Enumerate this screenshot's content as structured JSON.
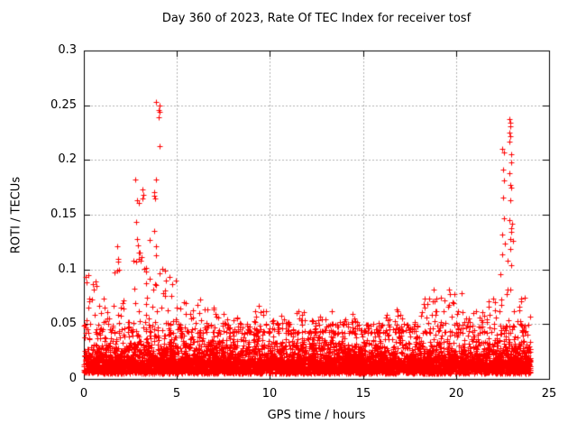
{
  "chart_data": {
    "type": "scatter",
    "title": "Day 360 of 2023, Rate Of TEC Index for receiver tosf",
    "xlabel": "GPS time / hours",
    "ylabel": "ROTI / TECUs",
    "xlim": [
      0,
      25
    ],
    "ylim": [
      0,
      0.3
    ],
    "xticks": [
      0,
      5,
      10,
      15,
      20,
      25
    ],
    "xtick_labels": [
      "0",
      "5",
      "10",
      "15",
      "20",
      "25"
    ],
    "yticks": [
      0,
      0.05,
      0.1,
      0.15,
      0.2,
      0.25,
      0.3
    ],
    "ytick_labels": [
      "0",
      "0.05",
      "0.1",
      "0.15",
      "0.2",
      "0.25",
      "0.3"
    ],
    "grid": true,
    "legend": "none",
    "marker": "plus",
    "colors": {
      "points": "#ff0000",
      "grid": "#b0b0b0",
      "frame": "#000000",
      "text": "#000000"
    },
    "data_time_range_hours": [
      0,
      24
    ],
    "noise_model": {
      "seed": 1360,
      "floor_points": 2200,
      "band_points": 2600,
      "mid_points": 1600,
      "spike_points_per_bin": 10,
      "floor_min": 0.005,
      "floor_spread": 0.012,
      "exp_scale": 0.012,
      "mid_base": 0.012,
      "mid_sigma": 0.013,
      "band_cap": 0.052,
      "spike_base": 0.042
    },
    "spike_envelope_per_half_hour": [
      0.095,
      0.09,
      0.08,
      0.107,
      0.085,
      0.115,
      0.105,
      0.13,
      0.105,
      0.095,
      0.075,
      0.065,
      0.075,
      0.065,
      0.06,
      0.055,
      0.06,
      0.05,
      0.07,
      0.065,
      0.055,
      0.06,
      0.07,
      0.065,
      0.055,
      0.06,
      0.065,
      0.055,
      0.06,
      0.055,
      0.05,
      0.055,
      0.06,
      0.065,
      0.06,
      0.055,
      0.075,
      0.08,
      0.075,
      0.082,
      0.078,
      0.06,
      0.065,
      0.072,
      0.08,
      0.09,
      0.08,
      0.074
    ],
    "outlier_points": [
      [
        0.12,
        0.093
      ],
      [
        0.15,
        0.088
      ],
      [
        0.65,
        0.089
      ],
      [
        0.7,
        0.085
      ],
      [
        1.79,
        0.121
      ],
      [
        1.82,
        0.11
      ],
      [
        1.85,
        0.107
      ],
      [
        1.9,
        0.1
      ],
      [
        2.76,
        0.182
      ],
      [
        2.8,
        0.143
      ],
      [
        2.85,
        0.163
      ],
      [
        2.85,
        0.128
      ],
      [
        2.9,
        0.122
      ],
      [
        2.95,
        0.161
      ],
      [
        2.95,
        0.115
      ],
      [
        3.0,
        0.115
      ],
      [
        3.05,
        0.108
      ],
      [
        3.1,
        0.111
      ],
      [
        3.15,
        0.173
      ],
      [
        3.15,
        0.165
      ],
      [
        3.2,
        0.168
      ],
      [
        3.35,
        0.101
      ],
      [
        3.77,
        0.171
      ],
      [
        3.8,
        0.167
      ],
      [
        3.8,
        0.135
      ],
      [
        3.82,
        0.165
      ],
      [
        3.86,
        0.182
      ],
      [
        3.86,
        0.121
      ],
      [
        3.88,
        0.113
      ],
      [
        3.9,
        0.253
      ],
      [
        4.0,
        0.246
      ],
      [
        4.0,
        0.239
      ],
      [
        4.05,
        0.25
      ],
      [
        4.05,
        0.244
      ],
      [
        4.05,
        0.213
      ],
      [
        4.35,
        0.099
      ],
      [
        4.4,
        0.09
      ],
      [
        18.8,
        0.082
      ],
      [
        19.6,
        0.082
      ],
      [
        20.3,
        0.078
      ],
      [
        22.4,
        0.096
      ],
      [
        22.5,
        0.21
      ],
      [
        22.5,
        0.132
      ],
      [
        22.5,
        0.114
      ],
      [
        22.52,
        0.166
      ],
      [
        22.55,
        0.191
      ],
      [
        22.6,
        0.207
      ],
      [
        22.6,
        0.181
      ],
      [
        22.6,
        0.147
      ],
      [
        22.65,
        0.124
      ],
      [
        22.75,
        0.108
      ],
      [
        22.85,
        0.225
      ],
      [
        22.85,
        0.145
      ],
      [
        22.87,
        0.237
      ],
      [
        22.87,
        0.217
      ],
      [
        22.87,
        0.188
      ],
      [
        22.9,
        0.234
      ],
      [
        22.9,
        0.222
      ],
      [
        22.9,
        0.163
      ],
      [
        22.9,
        0.128
      ],
      [
        22.9,
        0.119
      ],
      [
        22.92,
        0.231
      ],
      [
        22.92,
        0.177
      ],
      [
        22.95,
        0.205
      ],
      [
        22.95,
        0.175
      ],
      [
        22.95,
        0.138
      ],
      [
        22.95,
        0.104
      ],
      [
        22.97,
        0.198
      ],
      [
        22.97,
        0.134
      ],
      [
        23.0,
        0.142
      ],
      [
        23.05,
        0.126
      ],
      [
        23.7,
        0.074
      ]
    ]
  }
}
